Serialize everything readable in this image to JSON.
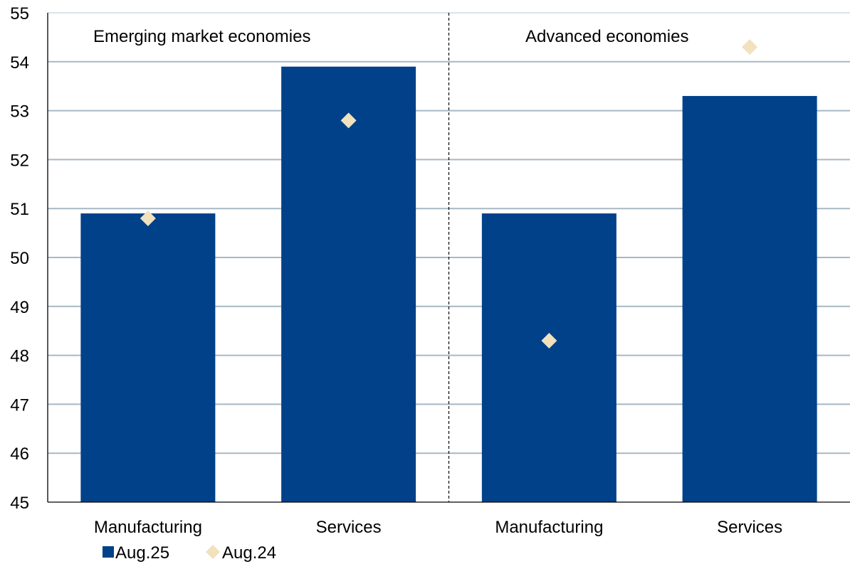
{
  "chart_data": {
    "type": "bar",
    "categories": [
      "Manufacturing",
      "Services",
      "Manufacturing",
      "Services"
    ],
    "groups": [
      {
        "label": "Emerging market economies",
        "categories": [
          0,
          1
        ]
      },
      {
        "label": "Advanced economies",
        "categories": [
          2,
          3
        ]
      }
    ],
    "series": [
      {
        "name": "Aug.25",
        "kind": "bar",
        "color": "#00418a",
        "values": [
          50.9,
          53.9,
          50.9,
          53.3
        ]
      },
      {
        "name": "Aug.24",
        "kind": "marker",
        "marker": "diamond",
        "color": "#f1e2bd",
        "values": [
          50.8,
          52.8,
          48.3,
          54.3
        ]
      }
    ],
    "ylim": [
      45,
      55
    ],
    "yticks": [
      "45",
      "46",
      "47",
      "48",
      "49",
      "50",
      "51",
      "52",
      "53",
      "54",
      "55"
    ],
    "grid": true,
    "legend_position": "bottom-left",
    "gridline_color": "#a7b8c4"
  }
}
